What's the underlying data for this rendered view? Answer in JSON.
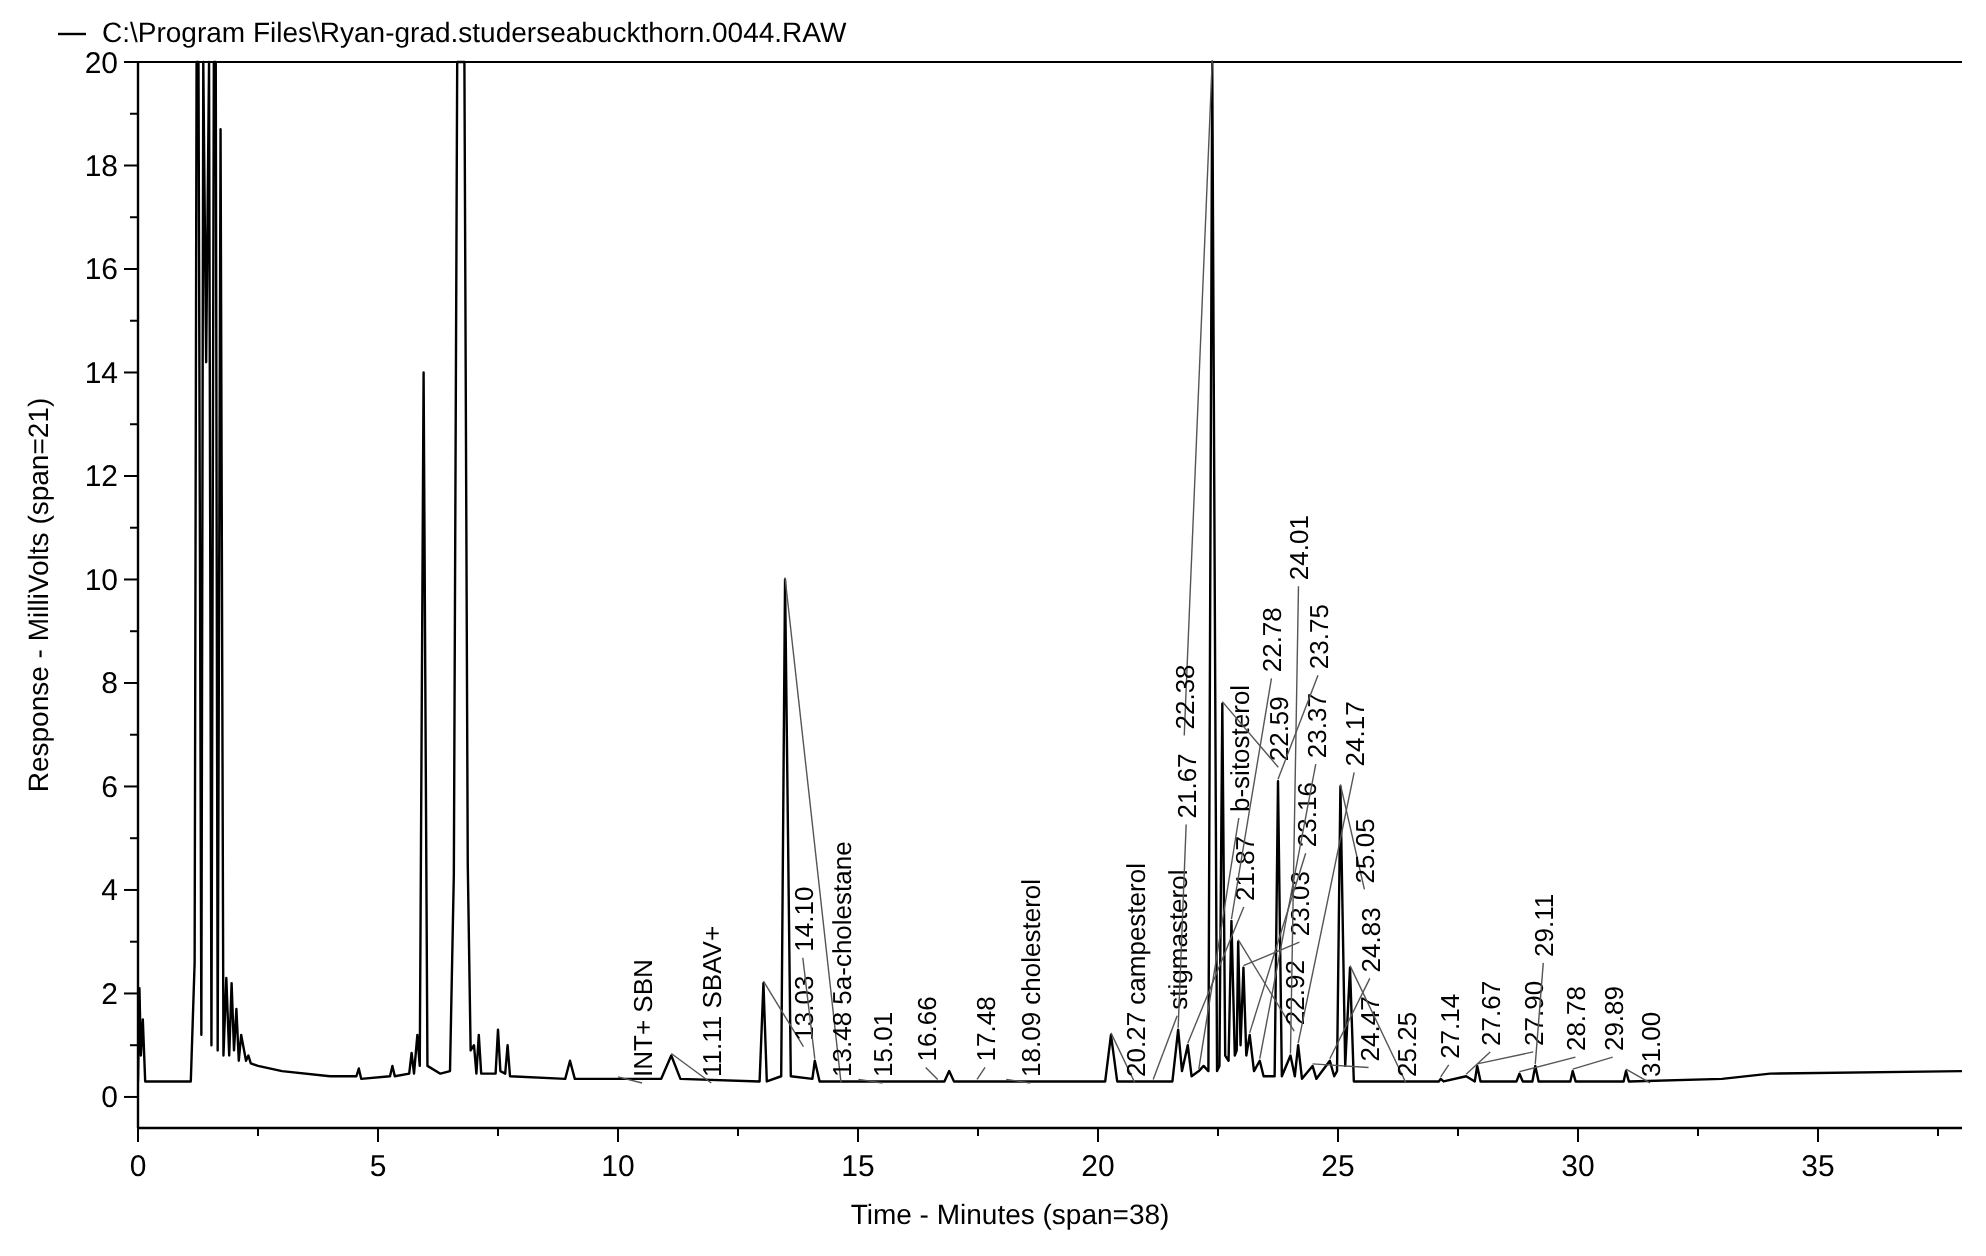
{
  "chart_data": {
    "type": "line",
    "xlabel": "Time - Minutes (span=38)",
    "ylabel": "Response - MilliVolts (span=21)",
    "xlim": [
      0,
      38
    ],
    "xticks": [
      0,
      {
        "value": 2.5,
        "label": null
      },
      5,
      {
        "value": 7.5,
        "label": null
      },
      10,
      {
        "value": 12.5,
        "label": null
      },
      15,
      {
        "value": 17.5,
        "label": null
      },
      20,
      {
        "value": 22.5,
        "label": null
      },
      25,
      {
        "value": 27.5,
        "label": null
      },
      30,
      {
        "value": 32.5,
        "label": null
      },
      35,
      {
        "value": 37.5,
        "label": null
      }
    ],
    "ylim": [
      -0.6,
      20
    ],
    "yticks": [
      0,
      {
        "value": 1,
        "label": null
      },
      2,
      {
        "value": 3,
        "label": null
      },
      4,
      {
        "value": 5,
        "label": null
      },
      6,
      {
        "value": 7,
        "label": null
      },
      8,
      {
        "value": 9,
        "label": null
      },
      10,
      {
        "value": 11,
        "label": null
      },
      12,
      {
        "value": 13,
        "label": null
      },
      14,
      {
        "value": 15,
        "label": null
      },
      16,
      {
        "value": 17,
        "label": null
      },
      18,
      {
        "value": 19,
        "label": null
      },
      20
    ],
    "grid": false,
    "legend": "top left",
    "line_style": "solid",
    "marker": "none",
    "series": [
      {
        "name": "C:\\Program Files\\Ryan-grad.studerseabuckthorn.0044.RAW",
        "color": "#000000",
        "x": [
          0,
          0.03,
          0.06,
          0.1,
          0.15,
          1.1,
          1.18,
          1.22,
          1.26,
          1.32,
          1.36,
          1.42,
          1.48,
          1.53,
          1.58,
          1.62,
          1.66,
          1.72,
          1.78,
          1.84,
          1.9,
          1.95,
          2.0,
          2.05,
          2.1,
          2.15,
          2.25,
          2.3,
          2.35,
          2.5,
          3.0,
          4.0,
          4.55,
          4.6,
          4.65,
          5.25,
          5.3,
          5.35,
          5.65,
          5.7,
          5.75,
          5.82,
          5.87,
          5.95,
          6.03,
          6.3,
          6.5,
          6.58,
          6.65,
          6.72,
          6.8,
          6.87,
          6.93,
          7.0,
          7.05,
          7.1,
          7.15,
          7.45,
          7.5,
          7.55,
          7.65,
          7.7,
          7.75,
          8.9,
          9.0,
          9.1,
          10.0,
          10.9,
          11.11,
          11.3,
          12.95,
          13.03,
          13.1,
          13.4,
          13.48,
          13.6,
          14.05,
          14.1,
          14.2,
          15.01,
          16.66,
          16.8,
          16.9,
          17.0,
          17.48,
          18.09,
          20.15,
          20.27,
          20.4,
          21.15,
          21.55,
          21.67,
          21.75,
          21.87,
          21.95,
          22.1,
          22.2,
          22.3,
          22.38,
          22.48,
          22.53,
          22.59,
          22.65,
          22.72,
          22.78,
          22.85,
          22.89,
          22.92,
          22.97,
          23.03,
          23.09,
          23.16,
          23.25,
          23.37,
          23.45,
          23.68,
          23.75,
          23.83,
          24.01,
          24.1,
          24.17,
          24.25,
          24.47,
          24.55,
          24.83,
          24.92,
          24.98,
          25.05,
          25.15,
          25.25,
          25.33,
          25.5,
          27.1,
          27.14,
          27.2,
          27.67,
          27.85,
          27.9,
          27.97,
          28.72,
          28.78,
          28.85,
          29.05,
          29.11,
          29.18,
          29.84,
          29.89,
          29.95,
          30.95,
          31.0,
          31.06,
          33.0,
          34.0,
          38.0
        ],
        "values": [
          0.3,
          2.1,
          0.8,
          1.5,
          0.3,
          0.3,
          2.6,
          20,
          20,
          1.2,
          20,
          14.2,
          20,
          1.0,
          20,
          20,
          0.9,
          18.7,
          0.8,
          2.3,
          0.8,
          2.2,
          0.9,
          1.7,
          0.7,
          1.2,
          0.7,
          0.8,
          0.65,
          0.6,
          0.5,
          0.4,
          0.4,
          0.55,
          0.35,
          0.4,
          0.6,
          0.4,
          0.45,
          0.85,
          0.45,
          1.2,
          0.6,
          14.0,
          0.6,
          0.45,
          0.5,
          4.3,
          20,
          20,
          20,
          4.5,
          0.9,
          1.0,
          0.45,
          1.2,
          0.45,
          0.45,
          1.3,
          0.5,
          0.45,
          1.0,
          0.4,
          0.35,
          0.7,
          0.35,
          0.35,
          0.35,
          0.8,
          0.35,
          0.3,
          2.2,
          0.3,
          0.4,
          10.0,
          0.4,
          0.35,
          0.7,
          0.3,
          0.3,
          0.3,
          0.3,
          0.5,
          0.3,
          0.3,
          0.3,
          0.3,
          1.2,
          0.3,
          0.3,
          0.3,
          1.3,
          0.5,
          1.0,
          0.4,
          0.5,
          0.6,
          0.5,
          20,
          0.5,
          0.6,
          7.6,
          0.8,
          0.7,
          3.4,
          0.8,
          0.9,
          3.0,
          1.0,
          2.5,
          0.8,
          1.2,
          0.5,
          0.7,
          0.4,
          0.4,
          6.1,
          0.4,
          0.8,
          0.4,
          1.0,
          0.35,
          0.6,
          0.35,
          0.7,
          0.4,
          0.5,
          6.0,
          0.6,
          2.5,
          0.3,
          0.3,
          0.3,
          0.35,
          0.3,
          0.4,
          0.3,
          0.6,
          0.3,
          0.3,
          0.45,
          0.3,
          0.3,
          0.6,
          0.3,
          0.3,
          0.5,
          0.3,
          0.3,
          0.5,
          0.3,
          0.35,
          0.45,
          0.5
        ]
      }
    ],
    "annotations": [
      {
        "text": "INT+  SBN",
        "x": 10.0,
        "y": 0.35
      },
      {
        "text": "11.11  SBAV+",
        "x": 11.11,
        "y": 0.8
      },
      {
        "text": "13.03",
        "x": 13.03,
        "y": 2.2
      },
      {
        "text": "13.48  5a-cholestane",
        "x": 13.48,
        "y": 10.0
      },
      {
        "text": "14.10",
        "x": 14.1,
        "y": 0.7
      },
      {
        "text": "15.01",
        "x": 15.01,
        "y": 0.3
      },
      {
        "text": "16.66",
        "x": 16.66,
        "y": 0.3
      },
      {
        "text": "17.48",
        "x": 17.48,
        "y": 0.3
      },
      {
        "text": "18.09  cholesterol",
        "x": 18.09,
        "y": 0.3
      },
      {
        "text": "20.27  campesterol",
        "x": 20.27,
        "y": 1.2
      },
      {
        "text": "stigmasterol",
        "x": 21.15,
        "y": 0.3
      },
      {
        "text": "21.67",
        "x": 21.67,
        "y": 1.3
      },
      {
        "text": "21.87",
        "x": 21.87,
        "y": 1.0
      },
      {
        "text": "b-sitosterol",
        "x": 22.1,
        "y": 0.5
      },
      {
        "text": "22.38",
        "x": 22.38,
        "y": 20
      },
      {
        "text": "22.59",
        "x": 22.59,
        "y": 7.6
      },
      {
        "text": "22.78",
        "x": 22.78,
        "y": 3.4
      },
      {
        "text": "22.92",
        "x": 22.92,
        "y": 3.0
      },
      {
        "text": "23.03",
        "x": 23.03,
        "y": 2.5
      },
      {
        "text": "23.16",
        "x": 23.16,
        "y": 1.2
      },
      {
        "text": "23.37",
        "x": 23.37,
        "y": 0.7
      },
      {
        "text": "23.75",
        "x": 23.75,
        "y": 6.1
      },
      {
        "text": "24.01",
        "x": 24.01,
        "y": 0.8
      },
      {
        "text": "24.17",
        "x": 24.17,
        "y": 1.0
      },
      {
        "text": "24.47",
        "x": 24.47,
        "y": 0.6
      },
      {
        "text": "24.83",
        "x": 24.83,
        "y": 0.7
      },
      {
        "text": "25.05",
        "x": 25.05,
        "y": 6.0
      },
      {
        "text": "25.25",
        "x": 25.25,
        "y": 2.5
      },
      {
        "text": "27.14",
        "x": 27.14,
        "y": 0.35
      },
      {
        "text": "27.67",
        "x": 27.67,
        "y": 0.4
      },
      {
        "text": "27.90",
        "x": 27.9,
        "y": 0.6
      },
      {
        "text": "28.78",
        "x": 28.78,
        "y": 0.45
      },
      {
        "text": "29.11",
        "x": 29.11,
        "y": 0.6
      },
      {
        "text": "29.89",
        "x": 29.89,
        "y": 0.5
      },
      {
        "text": "31.00",
        "x": 31.0,
        "y": 0.5
      }
    ]
  }
}
